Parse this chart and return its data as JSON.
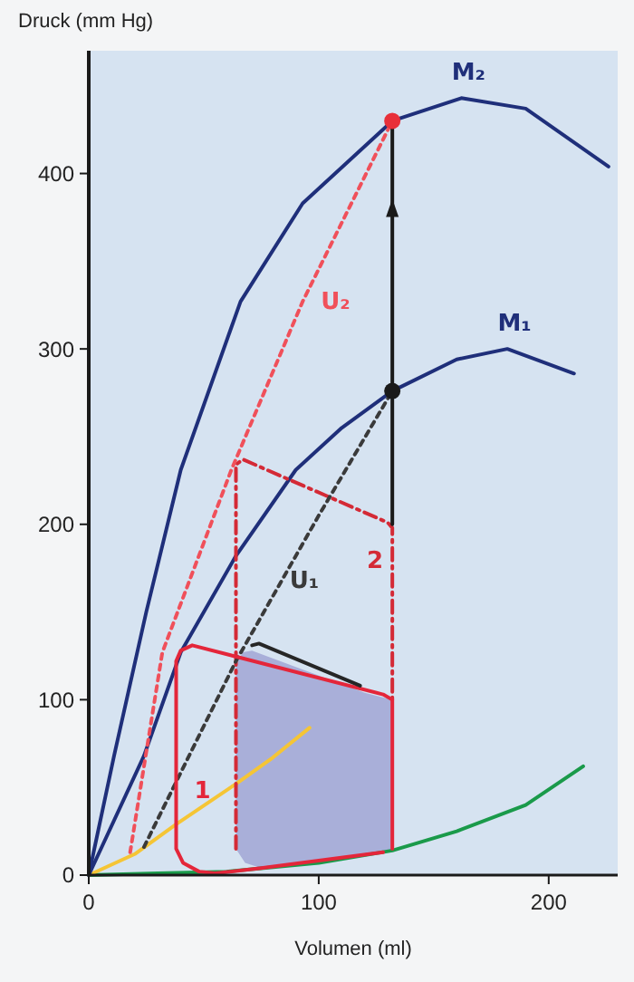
{
  "chart_data": {
    "type": "line",
    "xlabel": "Volumen (ml)",
    "ylabel": "Druck (mm Hg)",
    "xlim": [
      0,
      230
    ],
    "ylim": [
      0,
      470
    ],
    "xticks": [
      0,
      100,
      200
    ],
    "yticks": [
      0,
      100,
      200,
      300,
      400
    ],
    "grid": false,
    "series": [
      {
        "type": "area",
        "color": "#a9afd9",
        "x": [
          64,
          64,
          67,
          71,
          120,
          132,
          132,
          75,
          68,
          64
        ],
        "values": [
          15,
          120,
          127,
          128,
          104,
          100,
          14,
          4,
          7,
          15
        ]
      },
      {
        "color": "#1a9a4a",
        "x": [
          0,
          30,
          60,
          100,
          132,
          160,
          190,
          215
        ],
        "values": [
          0,
          1,
          2,
          7,
          14,
          25,
          40,
          62
        ]
      },
      {
        "color": "#f5c535",
        "x": [
          0,
          20,
          38,
          64,
          80,
          96
        ],
        "values": [
          0,
          12,
          29,
          52,
          67,
          84
        ]
      },
      {
        "name": "M₂",
        "color": "#1f2f7a",
        "x": [
          0,
          11,
          25,
          40,
          66,
          93,
          132,
          162,
          190,
          226
        ],
        "values": [
          0,
          68,
          150,
          231,
          327,
          383,
          430,
          443,
          437,
          404
        ]
      },
      {
        "name": "M₁",
        "color": "#1f2f7a",
        "x": [
          0,
          24,
          40,
          64,
          90,
          110,
          132,
          160,
          182,
          211
        ],
        "values": [
          0,
          68,
          127,
          182,
          231,
          255,
          276,
          294,
          300,
          286
        ]
      },
      {
        "name": "2",
        "color": "#d42a36",
        "line_style": "dashed",
        "x": [
          64,
          64,
          67,
          130,
          132,
          132
        ],
        "values": [
          15,
          234,
          237,
          201,
          198,
          100
        ]
      },
      {
        "color": "#1a1a1a",
        "x": [
          132,
          132
        ],
        "values": [
          200,
          430
        ]
      },
      {
        "name": "U₂",
        "color": "#f0505a",
        "line_style": "dotted",
        "x": [
          18,
          32,
          62,
          93,
          132
        ],
        "values": [
          13,
          127,
          231,
          327,
          430
        ]
      },
      {
        "name": "U₁",
        "color": "#3a3a3a",
        "line_style": "dotted",
        "x": [
          24,
          64,
          100,
          132
        ],
        "values": [
          16,
          122,
          205,
          276
        ]
      },
      {
        "name": "1",
        "color": "#e4263a",
        "x": [
          132,
          132,
          128,
          45,
          40,
          38,
          38,
          41,
          48,
          55,
          75,
          128
        ],
        "values": [
          15,
          100,
          103,
          131,
          128,
          122,
          15,
          7,
          2,
          1,
          4,
          13
        ]
      },
      {
        "color": "#262626",
        "x": [
          71,
          74,
          118
        ],
        "values": [
          131,
          132,
          108
        ]
      },
      {
        "type": "scatter",
        "color": "#e8303a",
        "marker": "circle",
        "x": [
          132
        ],
        "values": [
          430
        ]
      },
      {
        "type": "scatter",
        "color": "#1a1a1a",
        "marker": "circle",
        "x": [
          132
        ],
        "values": [
          276
        ]
      }
    ]
  }
}
